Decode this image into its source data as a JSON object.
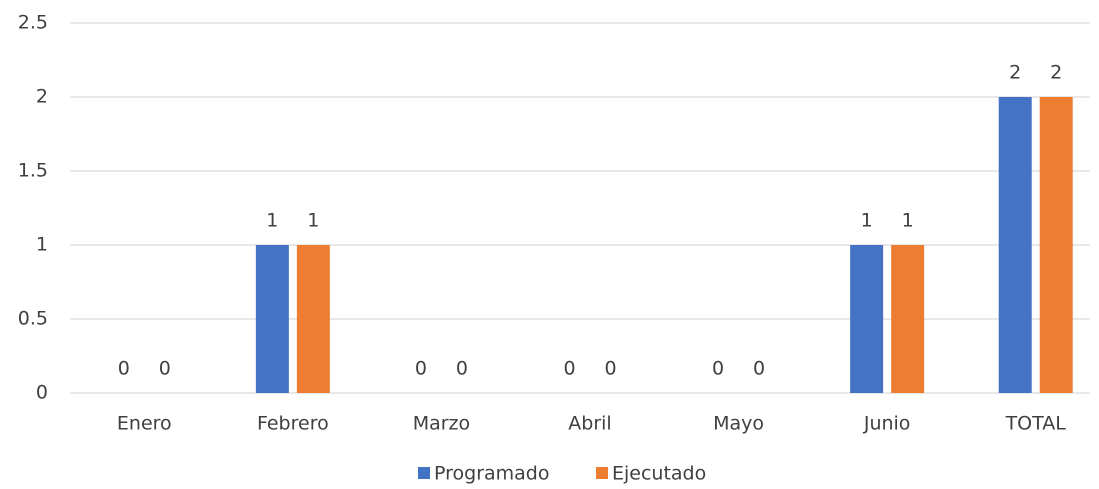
{
  "chart_data": {
    "type": "bar",
    "categories": [
      "Enero",
      "Febrero",
      "Marzo",
      "Abril",
      "Mayo",
      "Junio",
      "TOTAL"
    ],
    "series": [
      {
        "name": "Programado",
        "color": "#4472c4",
        "values": [
          0,
          1,
          0,
          0,
          0,
          1,
          2
        ]
      },
      {
        "name": "Ejecutado",
        "color": "#ed7d31",
        "values": [
          0,
          1,
          0,
          0,
          0,
          1,
          2
        ]
      }
    ],
    "ylim": [
      0,
      2.5
    ],
    "yticks": [
      0,
      0.5,
      1,
      1.5,
      2,
      2.5
    ],
    "grid": true,
    "legend": "bottom"
  }
}
